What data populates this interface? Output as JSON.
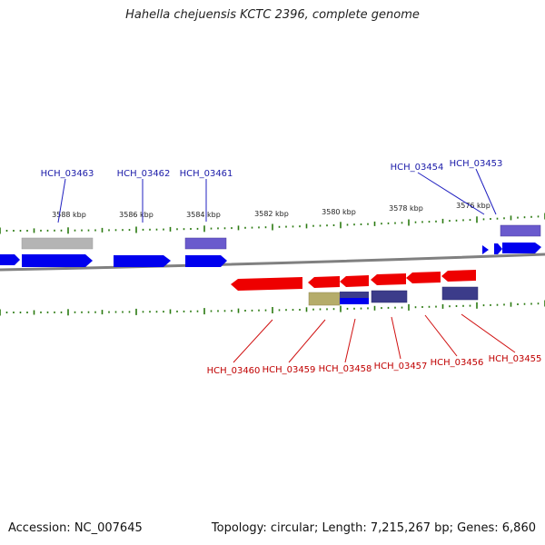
{
  "title": "Hahella chejuensis KCTC 2396, complete genome",
  "footer": {
    "accession": "Accession: NC_007645",
    "summary": "Topology: circular; Length: 7,215,267 bp; Genes: 6,860"
  },
  "scale_labels": [
    "3588 kbp",
    "3586 kbp",
    "3584 kbp",
    "3582 kbp",
    "3580 kbp",
    "3578 kbp",
    "3576 kbp"
  ],
  "forward_gene_labels": [
    "HCH_03463",
    "HCH_03462",
    "HCH_03461",
    "HCH_03454",
    "HCH_03453"
  ],
  "reverse_gene_labels": [
    "HCH_03460",
    "HCH_03459",
    "HCH_03458",
    "HCH_03457",
    "HCH_03456",
    "HCH_03455"
  ],
  "colors": {
    "forward_gene": "#0000ee",
    "reverse_gene": "#ee0000",
    "forward_label": "#1a1aa8",
    "reverse_label": "#c00000",
    "tick": "#2a7a10",
    "backbone": "#808080",
    "feature_purple": "#6a5acd",
    "feature_navy": "#3c3c8a",
    "feature_gray": "#b4b4b4",
    "feature_olive": "#b5ac6a"
  }
}
